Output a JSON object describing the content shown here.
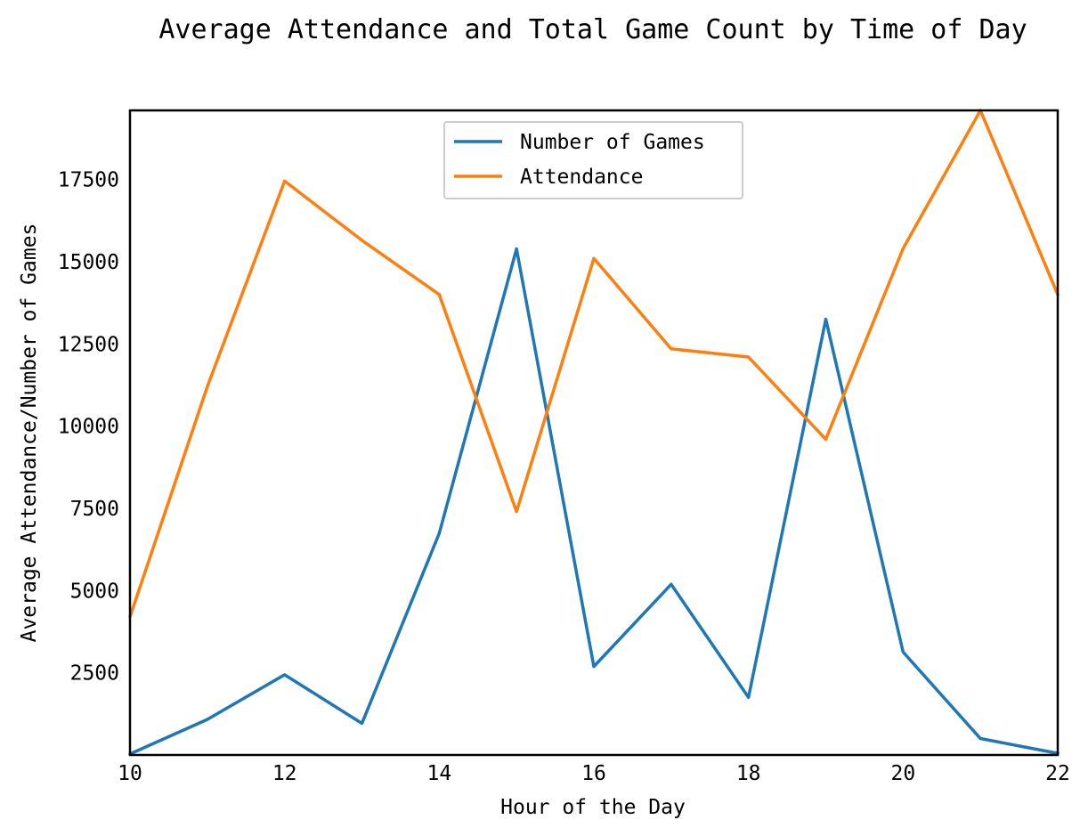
{
  "chart_data": {
    "type": "line",
    "title": "Average Attendance and Total Game Count by Time of Day",
    "xlabel": "Hour of the Day",
    "ylabel": "Average Attendance/Number of Games",
    "xlim": [
      10,
      22
    ],
    "ylim": [
      0,
      19600
    ],
    "x_ticks": [
      "10",
      "12",
      "14",
      "16",
      "18",
      "20",
      "22"
    ],
    "y_ticks": [
      "2500",
      "5000",
      "7500",
      "10000",
      "12500",
      "15000",
      "17500"
    ],
    "grid": false,
    "legend_position": "top-center",
    "x": [
      10,
      11,
      12,
      13,
      14,
      15,
      16,
      17,
      18,
      19,
      20,
      21,
      22
    ],
    "series": [
      {
        "name": "Number of Games",
        "color": "#1f77b4",
        "values": [
          30,
          1080,
          2440,
          960,
          6740,
          15390,
          2690,
          5190,
          1750,
          13250,
          3130,
          500,
          50
        ]
      },
      {
        "name": "Attendance",
        "color": "#ff7f0e",
        "values": [
          4200,
          11200,
          17450,
          15650,
          14000,
          7400,
          15100,
          12350,
          12100,
          9600,
          15400,
          19600,
          14000
        ]
      }
    ]
  }
}
